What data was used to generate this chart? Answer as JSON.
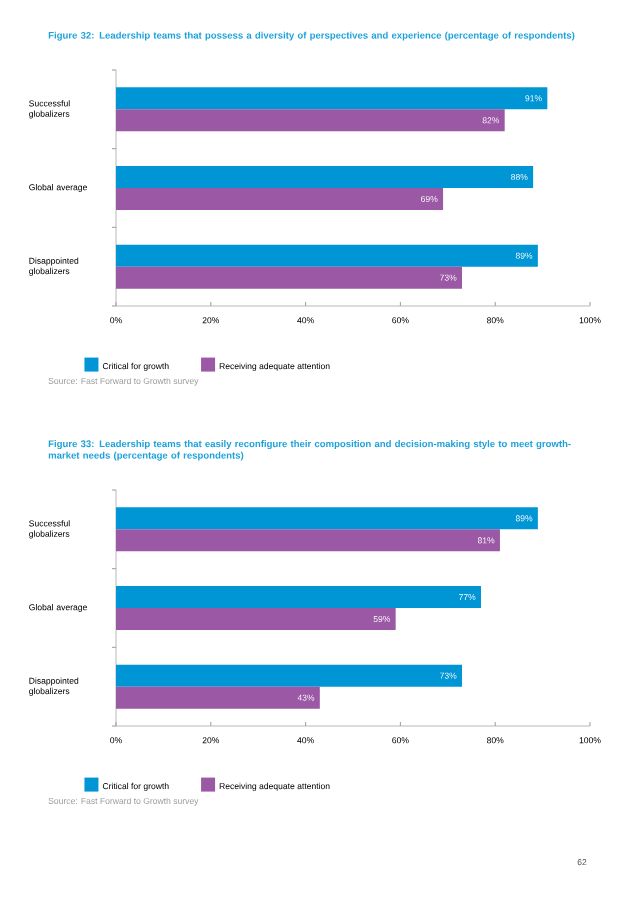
{
  "chart_data": [
    {
      "type": "bar",
      "orientation": "horizontal",
      "title": "Figure 32: Leadership teams that possess a diversity of perspectives and experience (percentage of respondents)",
      "categories": [
        "Successful globalizers",
        "Global average",
        "Disappointed globalizers"
      ],
      "series": [
        {
          "name": "Critical for growth",
          "color": "#0096d6",
          "values": [
            91,
            88,
            89
          ],
          "value_labels": [
            "91%",
            "88%",
            "89%"
          ]
        },
        {
          "name": "Receiving adequate attention",
          "color": "#9b58a5",
          "values": [
            82,
            69,
            73
          ],
          "value_labels": [
            "82%",
            "69%",
            "73%"
          ]
        }
      ],
      "xlim": [
        0,
        100
      ],
      "xticks": [
        {
          "value": 0,
          "label": "0%"
        },
        {
          "value": 20,
          "label": "20%"
        },
        {
          "value": 40,
          "label": "40%"
        },
        {
          "value": 60,
          "label": "60%"
        },
        {
          "value": 80,
          "label": "80%"
        },
        {
          "value": 100,
          "label": "100%"
        }
      ],
      "legend": "bottom",
      "grid": false,
      "annotations": [
        "Source: Fast Forward to Growth survey"
      ]
    },
    {
      "type": "bar",
      "orientation": "horizontal",
      "title": "Figure 33: Leadership teams that easily reconfigure their composition and decision-making style to meet growth-market needs (percentage of respondents)",
      "categories": [
        "Successful globalizers",
        "Global average",
        "Disappointed globalizers"
      ],
      "series": [
        {
          "name": "Critical for growth",
          "color": "#0096d6",
          "values": [
            89,
            77,
            73
          ],
          "value_labels": [
            "89%",
            "77%",
            "73%"
          ]
        },
        {
          "name": "Receiving adequate attention",
          "color": "#9b58a5",
          "values": [
            81,
            59,
            43
          ],
          "value_labels": [
            "81%",
            "59%",
            "43%"
          ]
        }
      ],
      "xlim": [
        0,
        100
      ],
      "xticks": [
        {
          "value": 0,
          "label": "0%"
        },
        {
          "value": 20,
          "label": "20%"
        },
        {
          "value": 40,
          "label": "40%"
        },
        {
          "value": 60,
          "label": "60%"
        },
        {
          "value": 80,
          "label": "80%"
        },
        {
          "value": 100,
          "label": "100%"
        }
      ],
      "legend": "bottom",
      "grid": false,
      "annotations": [
        "Source: Fast Forward to Growth survey",
        "62"
      ]
    }
  ]
}
